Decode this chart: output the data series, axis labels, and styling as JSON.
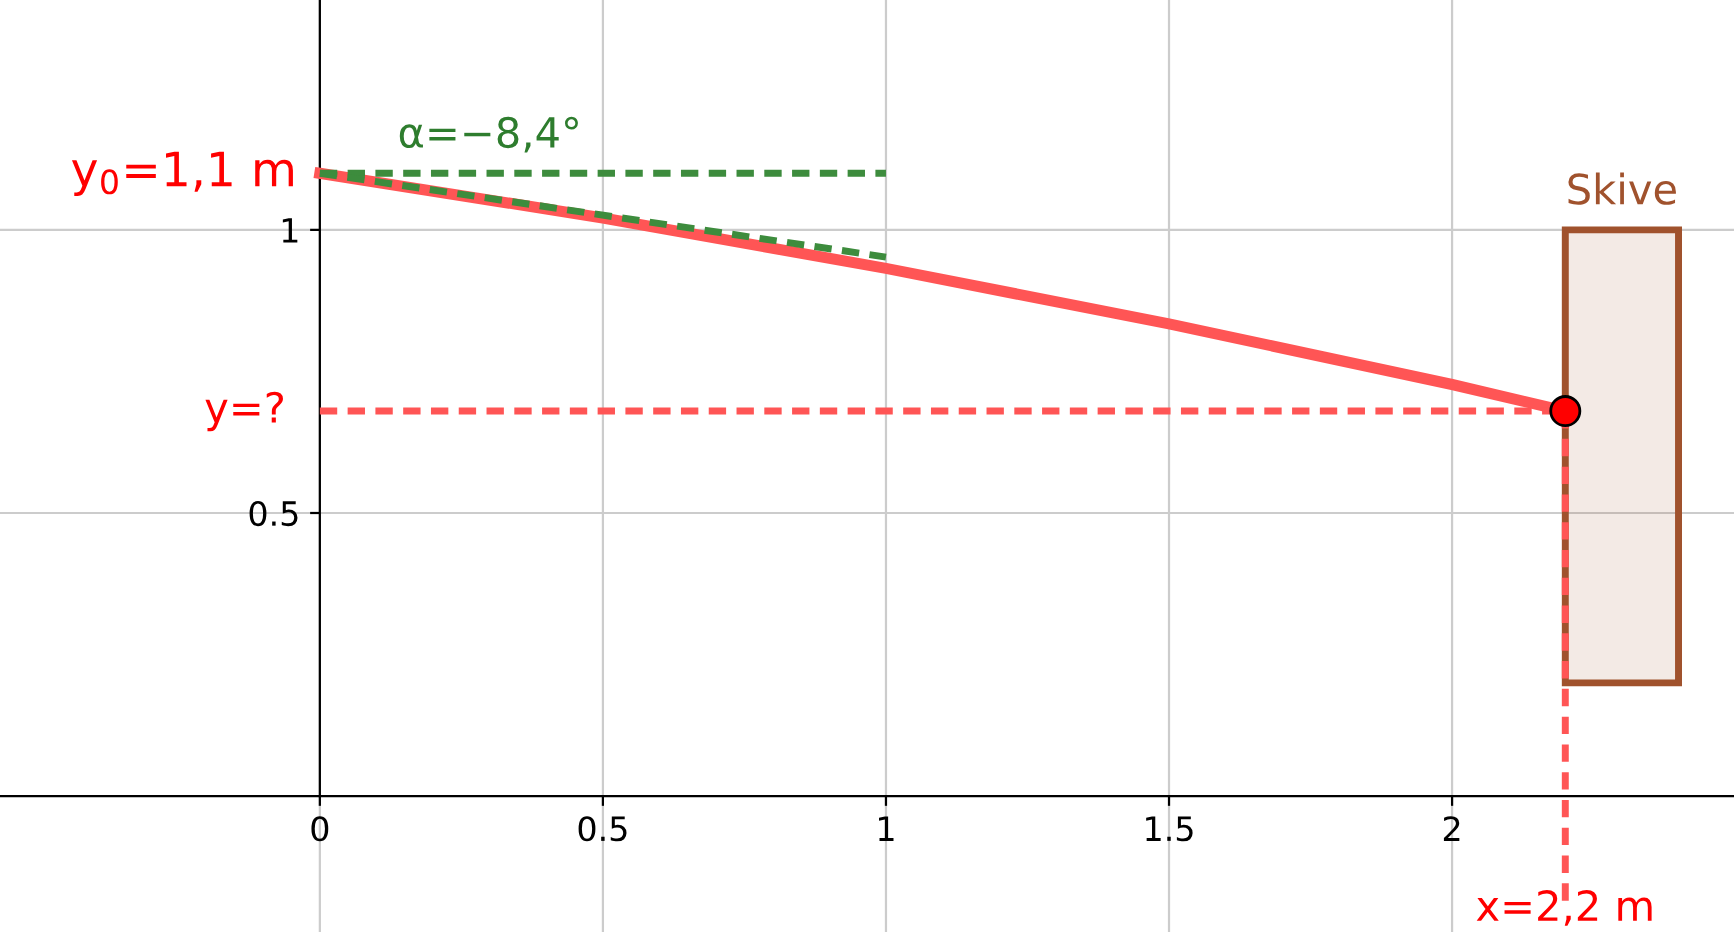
{
  "chart_data": {
    "type": "line",
    "xlim": [
      -0.565,
      2.498
    ],
    "ylim": [
      -0.24,
      1.406
    ],
    "xticks": [
      0,
      0.5,
      1,
      1.5,
      2
    ],
    "yticks": [
      0.5,
      1
    ],
    "grid": true,
    "legend": false,
    "series": [
      {
        "color": "#3d8c3d",
        "line_style": "dashed",
        "x": [
          0,
          1
        ],
        "values": [
          1.1,
          1.1
        ]
      },
      {
        "color": "#3d8c3d",
        "line_style": "dashed",
        "x": [
          0,
          1
        ],
        "values": [
          1.1,
          0.952
        ]
      },
      {
        "color": "#ff5555",
        "line_style": "dashed",
        "x": [
          0,
          2.2
        ],
        "values": [
          0.68,
          0.68
        ]
      },
      {
        "color": "#ff5555",
        "line_style": "dashed",
        "x": [
          2.2,
          2.2
        ],
        "values": [
          0.68,
          -0.2
        ]
      },
      {
        "type": "bar",
        "name": "Skive",
        "color": "#a0522d",
        "x": [
          2.3
        ],
        "base": [
          0.2
        ],
        "values": [
          0.8
        ]
      },
      {
        "color": "#ff5555",
        "line_style": "solid",
        "x": [
          0,
          0.5,
          1,
          1.5,
          2,
          2.2
        ],
        "values": [
          1.1,
          1.021,
          0.932,
          0.834,
          0.727,
          0.68
        ]
      },
      {
        "type": "scatter",
        "color": "#ff0000",
        "marker": "circle",
        "x": [
          2.2
        ],
        "values": [
          0.68
        ]
      }
    ],
    "annotations": [
      {
        "text": "y$_{0}$=1,1 m",
        "x": 0,
        "y": 1.1
      },
      {
        "text": "y=?",
        "x": 0,
        "y": 0.68
      },
      {
        "text": "x=2,2 m",
        "x": 2.2,
        "y": -0.2
      },
      {
        "text": "α=−8,4°",
        "x": 0.3,
        "y": 1.1
      }
    ]
  }
}
